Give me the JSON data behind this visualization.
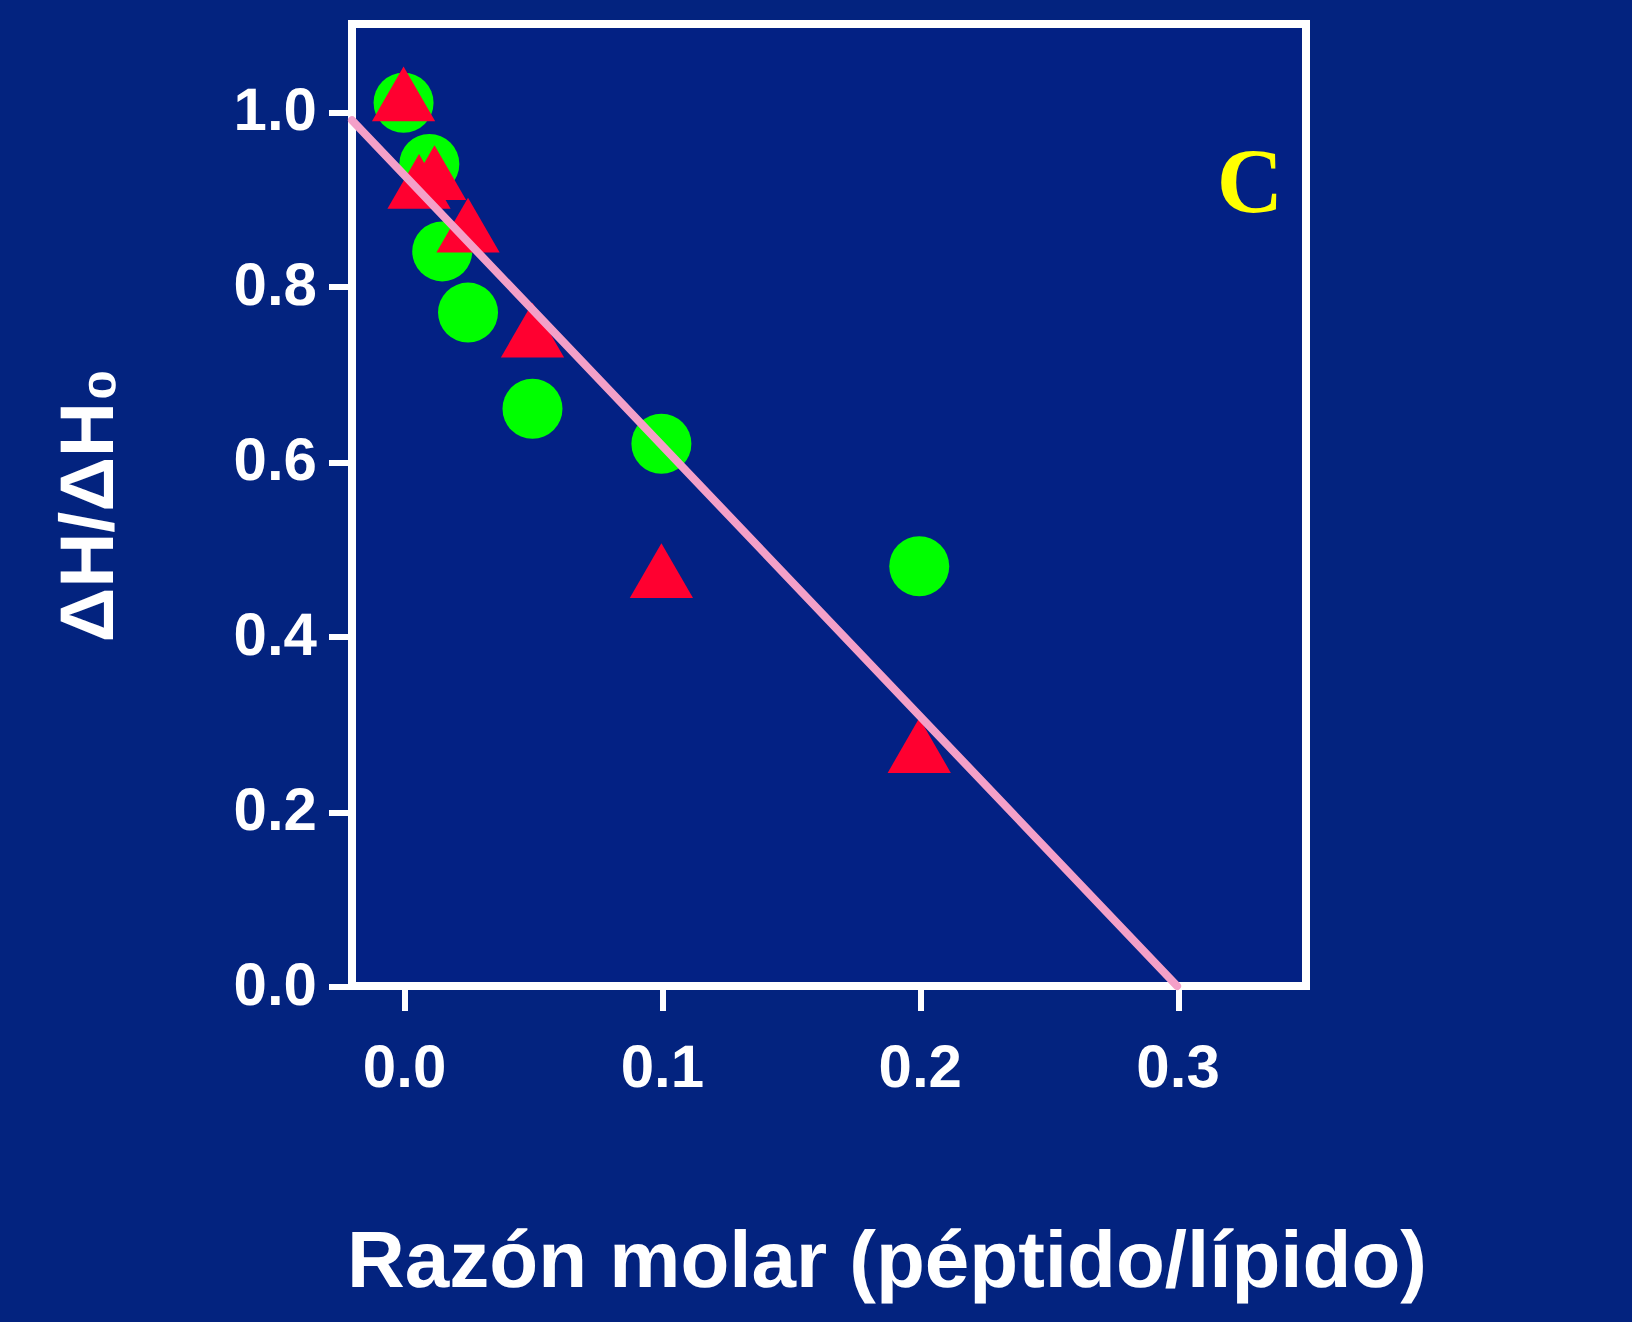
{
  "chart_data": {
    "type": "scatter",
    "xlabel": "Razón molar (péptido/lípido)",
    "ylabel": "ΔH/ΔH₀",
    "xlim": [
      -0.02,
      0.35
    ],
    "ylim": [
      0,
      1.1
    ],
    "xticks": [
      {
        "value": 0,
        "label": "0.0"
      },
      0.1,
      0.2,
      0.3
    ],
    "yticks": [
      {
        "value": 0,
        "label": "0.0"
      },
      0.2,
      0.4,
      0.6,
      0.8,
      {
        "value": 1,
        "label": "1.0"
      }
    ],
    "grid": false,
    "annotations": [
      "C"
    ],
    "series": [
      {
        "marker": "circle",
        "color": "#00ff00",
        "x": [
          0.0,
          0.01,
          0.015,
          0.025,
          0.05,
          0.1,
          0.2
        ],
        "values": [
          1.01,
          0.94,
          0.84,
          0.77,
          0.66,
          0.62,
          0.48
        ]
      },
      {
        "marker": "triangle",
        "color": "#ff0030",
        "x": [
          0.0,
          0.006,
          0.012,
          0.025,
          0.05,
          0.1,
          0.2
        ],
        "values": [
          1.02,
          0.92,
          0.93,
          0.87,
          0.75,
          0.475,
          0.275
        ]
      },
      {
        "type": "line",
        "marker": "none",
        "line_style": "solid",
        "color": "#f4a0c8",
        "x": [
          -0.02,
          0.3
        ],
        "values": [
          0.99,
          0.0
        ]
      }
    ]
  }
}
